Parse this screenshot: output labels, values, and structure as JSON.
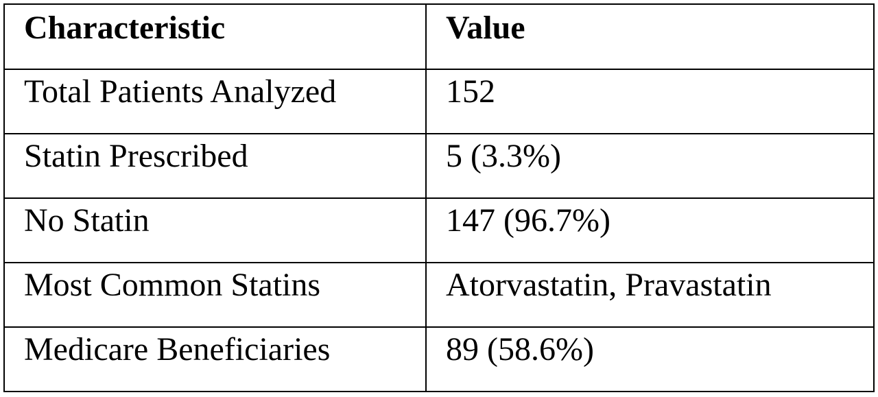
{
  "table": {
    "headers": [
      "Characteristic",
      "Value"
    ],
    "rows": [
      [
        "Total Patients Analyzed",
        "152"
      ],
      [
        "Statin Prescribed",
        "5 (3.3%)"
      ],
      [
        "No Statin",
        "147 (96.7%)"
      ],
      [
        "Most Common Statins",
        "Atorvastatin, Pravastatin"
      ],
      [
        "Medicare Beneficiaries",
        "89 (58.6%)"
      ]
    ]
  }
}
